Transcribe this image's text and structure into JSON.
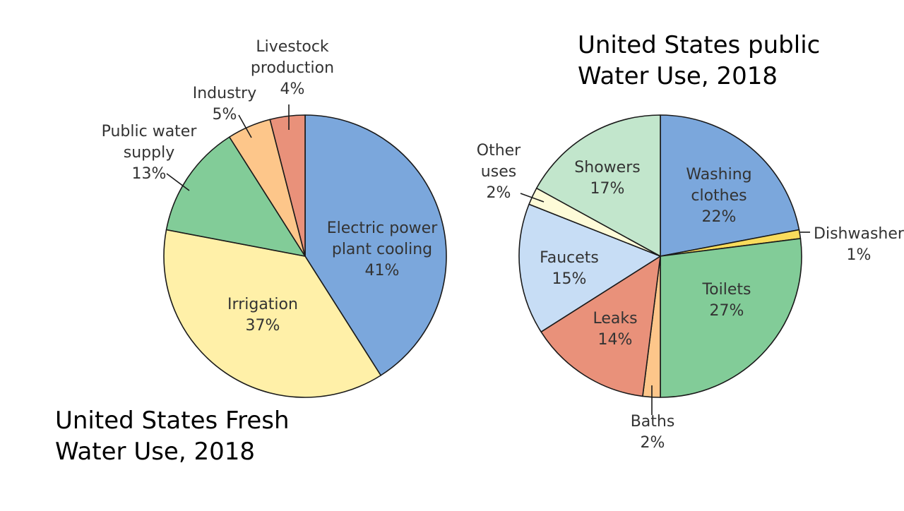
{
  "chart_data": [
    {
      "type": "pie",
      "title": [
        "United States Fresh",
        "Water Use, 2018"
      ],
      "unit": "%",
      "slices": [
        {
          "label": [
            "Electric power",
            "plant cooling"
          ],
          "value": 41,
          "value_label": "41%",
          "color": "#7ba7dc"
        },
        {
          "label": [
            "Irrigation"
          ],
          "value": 37,
          "value_label": "37%",
          "color": "#fff0a8"
        },
        {
          "label": [
            "Public water",
            "supply"
          ],
          "value": 13,
          "value_label": "13%",
          "color": "#82cc98"
        },
        {
          "label": [
            "Industry"
          ],
          "value": 5,
          "value_label": "5%",
          "color": "#fdc68a"
        },
        {
          "label": [
            "Livestock",
            "production"
          ],
          "value": 4,
          "value_label": "4%",
          "color": "#e9917a"
        }
      ]
    },
    {
      "type": "pie",
      "title": [
        "United States public",
        "Water Use, 2018"
      ],
      "unit": "%",
      "slices": [
        {
          "label": [
            "Washing",
            "clothes"
          ],
          "value": 22,
          "value_label": "22%",
          "color": "#7ba7dc"
        },
        {
          "label": [
            "Dishwasher"
          ],
          "value": 1,
          "value_label": "1%",
          "color": "#f9dc5c"
        },
        {
          "label": [
            "Toilets"
          ],
          "value": 27,
          "value_label": "27%",
          "color": "#82cc98"
        },
        {
          "label": [
            "Baths"
          ],
          "value": 2,
          "value_label": "2%",
          "color": "#fdc68a"
        },
        {
          "label": [
            "Leaks"
          ],
          "value": 14,
          "value_label": "14%",
          "color": "#e9917a"
        },
        {
          "label": [
            "Faucets"
          ],
          "value": 15,
          "value_label": "15%",
          "color": "#c7ddf5"
        },
        {
          "label": [
            "Other",
            "uses"
          ],
          "value": 2,
          "value_label": "2%",
          "color": "#fefbd8"
        },
        {
          "label": [
            "Showers"
          ],
          "value": 17,
          "value_label": "17%",
          "color": "#c2e6cc"
        }
      ]
    }
  ]
}
